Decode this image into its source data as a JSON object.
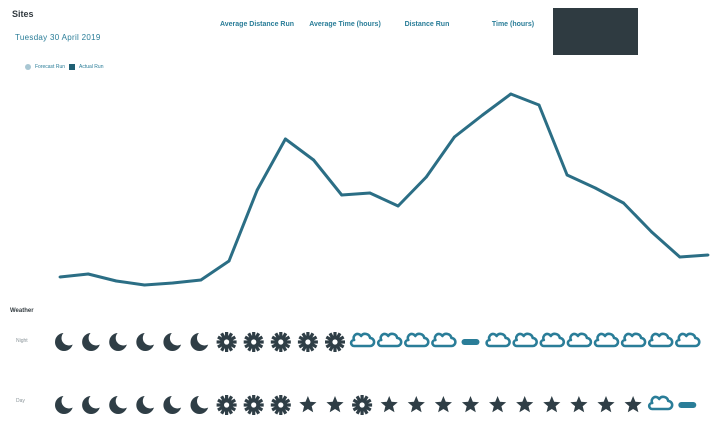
{
  "header": {
    "title": "Sites",
    "subtitle": "Tuesday 30 April 2019"
  },
  "metrics": [
    {
      "label": "Average Distance Run",
      "active": false
    },
    {
      "label": "Average Time (hours)",
      "active": false
    },
    {
      "label": "Distance Run",
      "active": false
    },
    {
      "label": "Time (hours)",
      "active": false
    },
    {
      "label": "",
      "active": true
    }
  ],
  "legend": [
    "Forecast Run",
    "Actual Run"
  ],
  "colors": {
    "line": "#2b6e85",
    "text_accent": "#2a7d98",
    "active_block": "#2f3b41",
    "icon_dark": "#2f3e46",
    "icon_teal": "#2a7d98"
  },
  "chart_data": {
    "type": "line",
    "x": [
      0,
      1,
      2,
      3,
      4,
      5,
      6,
      7,
      8,
      9,
      10,
      11,
      12,
      13,
      14,
      15,
      16,
      17,
      18,
      19,
      20,
      21,
      22,
      23
    ],
    "series": [
      {
        "name": "Actual Run",
        "values": [
          13,
          16,
          9,
          5,
          7,
          10,
          29,
          100,
          151,
          130,
          95,
          97,
          84,
          113,
          153,
          175,
          196,
          185,
          115,
          102,
          87,
          58,
          33,
          35
        ]
      }
    ],
    "ylim": [
      0,
      210
    ],
    "grid": false
  },
  "weather": {
    "section_label": "Weather",
    "row_labels": [
      "Night",
      "Day"
    ],
    "rows": [
      [
        "moon",
        "moon",
        "moon",
        "moon",
        "moon",
        "moon",
        "sun",
        "sun",
        "sun",
        "sun",
        "sun",
        "cloud",
        "cloud",
        "cloud",
        "cloud",
        "rain",
        "cloud",
        "cloud",
        "cloud",
        "cloud",
        "cloud",
        "cloud",
        "cloud",
        "cloud"
      ],
      [
        "moon",
        "moon",
        "moon",
        "moon",
        "moon",
        "moon",
        "sun",
        "sun",
        "sun",
        "star",
        "star",
        "sun",
        "star",
        "star",
        "star",
        "star",
        "star",
        "star",
        "star",
        "star",
        "star",
        "star",
        "cloud",
        "rain"
      ]
    ]
  }
}
